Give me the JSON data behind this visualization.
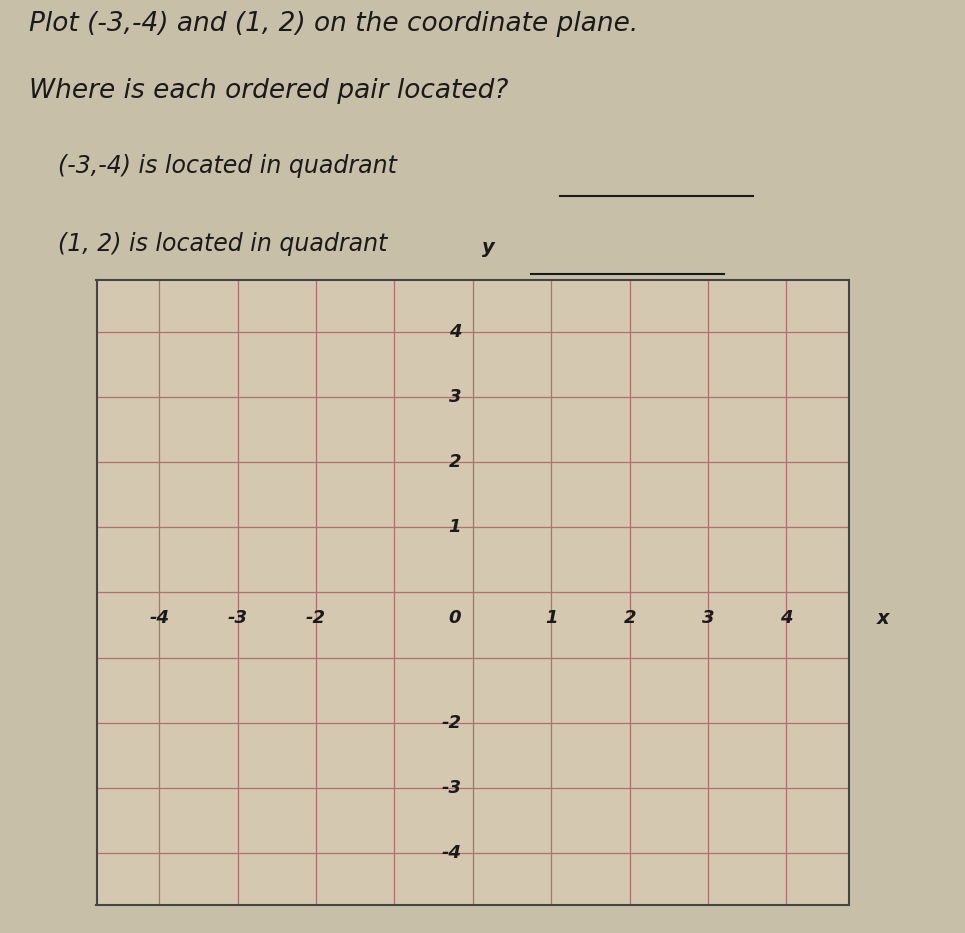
{
  "title_line1": "Plot (-3,-4) and (1, 2) on the coordinate plane.",
  "title_line2": "Where is each ordered pair located?",
  "question_line1": "(-3,-4) is located in quadrant",
  "question_line2": "(1, 2) is located in quadrant",
  "points": [
    [
      -3,
      -4
    ],
    [
      1,
      2
    ]
  ],
  "xlim": [
    -4.8,
    4.8
  ],
  "ylim": [
    -4.8,
    4.8
  ],
  "xticks_labeled": [
    -4,
    -3,
    -2,
    0,
    1,
    2,
    3,
    4
  ],
  "yticks_labeled_pos": [
    1,
    2,
    3,
    4
  ],
  "yticks_labeled_neg": [
    -2,
    -3,
    -4
  ],
  "grid_ticks": [
    -4,
    -3,
    -2,
    -1,
    0,
    1,
    2,
    3,
    4
  ],
  "grid_color": "#b07070",
  "axis_color": "#1a1a1a",
  "background_color": "#c8bfa8",
  "plot_bg_color": "#d4c8b0",
  "text_color": "#1a1a1a",
  "font_size_title": 19,
  "font_size_question": 17,
  "font_size_tick": 13,
  "underline_color": "#1a1a1a"
}
